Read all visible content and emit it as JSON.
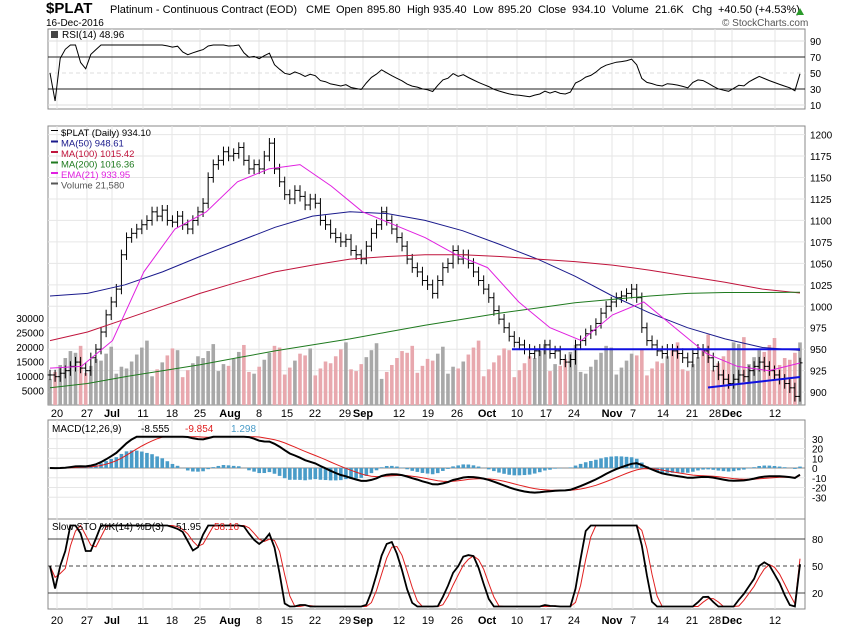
{
  "header": {
    "symbol": "$PLAT",
    "name": "Platinum - Continuous Contract (EOD)",
    "exchange": "CME",
    "date": "16-Dec-2016",
    "copyright": "© StockCharts.com",
    "quote": {
      "open_label": "Open",
      "open": "895.80",
      "high_label": "High",
      "high": "935.40",
      "low_label": "Low",
      "low": "895.20",
      "close_label": "Close",
      "close": "934.10",
      "volume_label": "Volume",
      "volume": "21.6K",
      "chg_label": "Chg",
      "chg": "+40.50 (+4.53%)"
    }
  },
  "colors": {
    "ma50": "#1a1a8c",
    "ma100": "#c0143c",
    "ma200": "#1f7a1f",
    "ema21": "#e020e0",
    "vol_up": "#a8a8a8",
    "vol_down": "#e8a8ae",
    "hist": "#4a9cc8",
    "macd": "#000000",
    "signal": "#e02020",
    "rsi_fill": "#4a6e4a",
    "trend": "#1010e0",
    "grid": "#cccccc"
  },
  "rsi_panel": {
    "legend": "RSI(14) 48.96",
    "ticks": [
      "90",
      "70",
      "50",
      "30",
      "10"
    ]
  },
  "price_panel": {
    "legend": [
      {
        "text": "$PLAT (Daily) 934.10",
        "color": "#000000"
      },
      {
        "text": "MA(50) 948.61",
        "color": "#1a1a8c"
      },
      {
        "text": "MA(100) 1015.42",
        "color": "#c0143c"
      },
      {
        "text": "MA(200) 1016.36",
        "color": "#1f7a1f"
      },
      {
        "text": "EMA(21) 933.95",
        "color": "#e020e0"
      },
      {
        "text": "Volume 21,580",
        "color": "#555555"
      }
    ],
    "price_ticks": [
      "1200",
      "1175",
      "1150",
      "1125",
      "1100",
      "1075",
      "1050",
      "1025",
      "1000",
      "975",
      "950",
      "925",
      "900"
    ],
    "volume_ticks": [
      "30000",
      "25000",
      "20000",
      "15000",
      "10000",
      "5000"
    ]
  },
  "macd_panel": {
    "legend_main": "MACD(12,26,9)",
    "macd": "-8.555",
    "signal": "-9.854",
    "hist": "1.298",
    "ticks": [
      "30",
      "20",
      "10",
      "0",
      "-10",
      "-20",
      "-30"
    ]
  },
  "sto_panel": {
    "legend_main": "Slow STO %K(14) %D(3)",
    "k": "51.95",
    "d": "58.16",
    "ticks": [
      "80",
      "50",
      "20"
    ]
  },
  "x_axis": {
    "labels": [
      "20",
      "27",
      "Jul",
      "11",
      "18",
      "25",
      "Aug",
      "8",
      "15",
      "22",
      "29",
      "Sep",
      "12",
      "19",
      "26",
      "Oct",
      "10",
      "17",
      "24",
      "Nov",
      "7",
      "14",
      "21",
      "28",
      "Dec",
      "12"
    ]
  },
  "chart_data": {
    "type": "line",
    "title": "$PLAT Platinum - Continuous Contract (EOD) CME",
    "x_range": [
      "2016-06-16",
      "2016-12-16"
    ],
    "ylim_price": [
      885,
      1210
    ],
    "close_series": [
      920,
      918,
      922,
      925,
      930,
      935,
      928,
      925,
      940,
      950,
      970,
      990,
      1005,
      1020,
      1060,
      1080,
      1085,
      1090,
      1095,
      1100,
      1110,
      1105,
      1112,
      1100,
      1098,
      1105,
      1095,
      1090,
      1100,
      1110,
      1120,
      1150,
      1165,
      1170,
      1180,
      1175,
      1178,
      1185,
      1170,
      1160,
      1165,
      1160,
      1175,
      1190,
      1160,
      1145,
      1130,
      1125,
      1135,
      1128,
      1118,
      1125,
      1120,
      1100,
      1095,
      1085,
      1080,
      1075,
      1078,
      1065,
      1060,
      1055,
      1070,
      1085,
      1095,
      1110,
      1100,
      1090,
      1080,
      1070,
      1055,
      1045,
      1040,
      1030,
      1025,
      1015,
      1030,
      1045,
      1050,
      1065,
      1055,
      1060,
      1050,
      1040,
      1030,
      1020,
      1010,
      995,
      985,
      975,
      965,
      958,
      955,
      950,
      945,
      948,
      950,
      955,
      945,
      948,
      938,
      935,
      938,
      955,
      960,
      968,
      972,
      980,
      992,
      1000,
      1005,
      1010,
      1012,
      1015,
      1020,
      1010,
      975,
      960,
      955,
      948,
      945,
      950,
      948,
      945,
      940,
      935,
      945,
      950,
      948,
      940,
      930,
      920,
      915,
      910,
      915,
      920,
      918,
      925,
      930,
      935,
      930,
      925,
      920,
      915,
      910,
      905,
      895,
      934.1
    ],
    "series": [
      {
        "name": "MA(50)",
        "last": 948.61,
        "values": [
          1012,
          1015,
          1025,
          1040,
          1058,
          1075,
          1092,
          1105,
          1110,
          1108,
          1100,
          1088,
          1072,
          1055,
          1035,
          1012,
          992,
          975,
          962,
          952,
          948.61
        ]
      },
      {
        "name": "MA(100)",
        "last": 1015.42,
        "values": [
          960,
          970,
          985,
          1000,
          1015,
          1028,
          1040,
          1048,
          1055,
          1058,
          1060,
          1060,
          1058,
          1055,
          1052,
          1048,
          1042,
          1035,
          1028,
          1020,
          1015.42
        ]
      },
      {
        "name": "MA(200)",
        "last": 1016.36,
        "values": [
          905,
          910,
          918,
          925,
          932,
          940,
          948,
          955,
          962,
          970,
          978,
          985,
          992,
          998,
          1004,
          1008,
          1012,
          1015,
          1016,
          1016,
          1016.36
        ]
      },
      {
        "name": "EMA(21)",
        "last": 933.95,
        "values": [
          928,
          930,
          960,
          1040,
          1090,
          1110,
          1145,
          1160,
          1165,
          1140,
          1110,
          1095,
          1080,
          1060,
          1045,
          1005,
          975,
          960,
          990,
          1005,
          975,
          945,
          930,
          925,
          933.95
        ]
      }
    ],
    "annotations": [
      {
        "type": "horizontal",
        "value": 950
      },
      {
        "type": "trendline",
        "from": 910,
        "to": 920
      }
    ],
    "rsi_last": 48.96,
    "macd": {
      "macd": -8.555,
      "signal": -9.854,
      "hist": 1.298
    },
    "slow_sto": {
      "k": 51.95,
      "d": 58.16
    },
    "volume_last": 21580
  }
}
